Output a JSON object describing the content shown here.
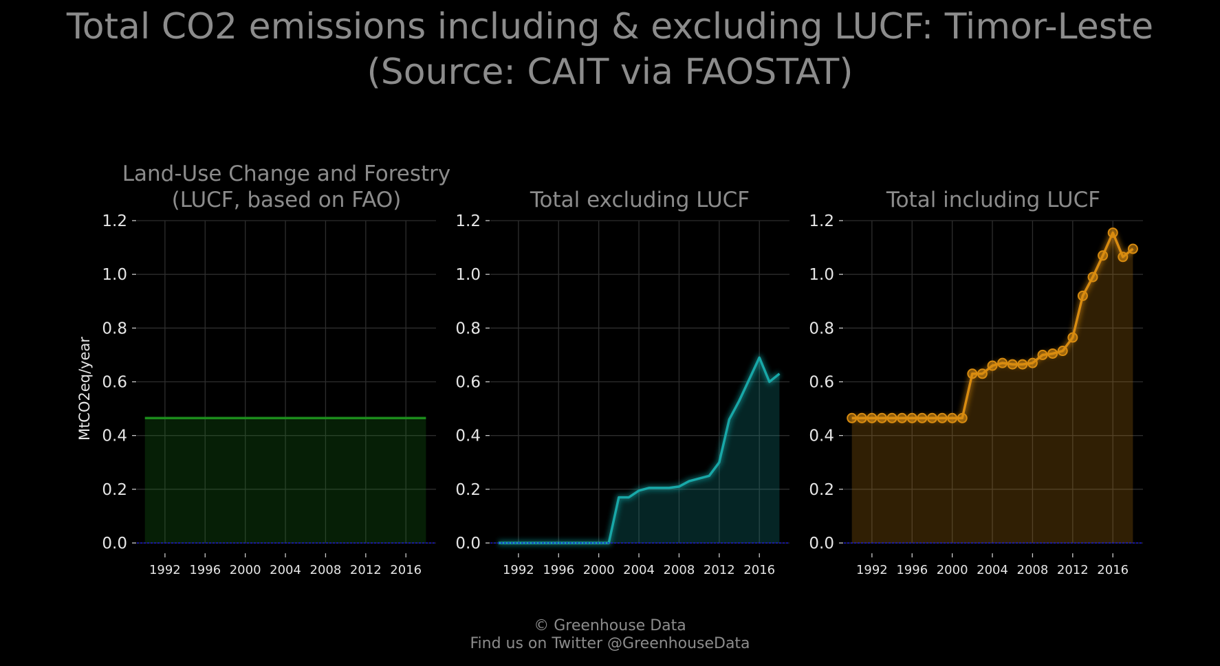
{
  "title_line1": "Total CO2 emissions including & excluding LUCF: Timor-Leste",
  "title_line2": "(Source: CAIT via FAOSTAT)",
  "footer_line1": "© Greenhouse Data",
  "footer_line2": "Find us on Twitter @GreenhouseData",
  "chart_data": [
    {
      "type": "area",
      "title": "Land-Use Change and Forestry\n(LUCF, based on FAO)",
      "ylabel": "MtCO2eq/year",
      "color": "#1c8c1c",
      "markers": false,
      "x": [
        1990,
        1991,
        1992,
        1993,
        1994,
        1995,
        1996,
        1997,
        1998,
        1999,
        2000,
        2001,
        2002,
        2003,
        2004,
        2005,
        2006,
        2007,
        2008,
        2009,
        2010,
        2011,
        2012,
        2013,
        2014,
        2015,
        2016,
        2017,
        2018
      ],
      "values": [
        0.465,
        0.465,
        0.465,
        0.465,
        0.465,
        0.465,
        0.465,
        0.465,
        0.465,
        0.465,
        0.465,
        0.465,
        0.465,
        0.465,
        0.465,
        0.465,
        0.465,
        0.465,
        0.465,
        0.465,
        0.465,
        0.465,
        0.465,
        0.465,
        0.465,
        0.465,
        0.465,
        0.465,
        0.465
      ],
      "ylim": [
        0,
        1.2
      ],
      "yticks": [
        0.0,
        0.2,
        0.4,
        0.6,
        0.8,
        1.0,
        1.2
      ],
      "ytick_labels": [
        "0.0",
        "0.2",
        "0.4",
        "0.6",
        "0.8",
        "1.0",
        "1.2"
      ],
      "xticks": [
        1992,
        1996,
        2000,
        2004,
        2008,
        2012,
        2016
      ],
      "xtick_labels": [
        "1992",
        "1996",
        "2000",
        "2004",
        "2008",
        "2012",
        "2016"
      ],
      "grid": true
    },
    {
      "type": "area",
      "title": "Total excluding LUCF",
      "ylabel": "",
      "color": "#18a8a8",
      "markers": false,
      "x": [
        1990,
        1991,
        1992,
        1993,
        1994,
        1995,
        1996,
        1997,
        1998,
        1999,
        2000,
        2001,
        2002,
        2003,
        2004,
        2005,
        2006,
        2007,
        2008,
        2009,
        2010,
        2011,
        2012,
        2013,
        2014,
        2015,
        2016,
        2017,
        2018
      ],
      "values": [
        0,
        0,
        0,
        0,
        0,
        0,
        0,
        0,
        0,
        0,
        0,
        0,
        0.17,
        0.17,
        0.195,
        0.205,
        0.205,
        0.205,
        0.21,
        0.23,
        0.24,
        0.25,
        0.3,
        0.46,
        0.53,
        0.61,
        0.69,
        0.6,
        0.63
      ],
      "ylim": [
        0,
        1.2
      ],
      "yticks": [
        0.0,
        0.2,
        0.4,
        0.6,
        0.8,
        1.0,
        1.2
      ],
      "ytick_labels": [
        "0.0",
        "0.2",
        "0.4",
        "0.6",
        "0.8",
        "1.0",
        "1.2"
      ],
      "xticks": [
        1992,
        1996,
        2000,
        2004,
        2008,
        2012,
        2016
      ],
      "xtick_labels": [
        "1992",
        "1996",
        "2000",
        "2004",
        "2008",
        "2012",
        "2016"
      ],
      "grid": true
    },
    {
      "type": "area",
      "title": "Total including LUCF",
      "ylabel": "",
      "color": "#d98c10",
      "markers": true,
      "x": [
        1990,
        1991,
        1992,
        1993,
        1994,
        1995,
        1996,
        1997,
        1998,
        1999,
        2000,
        2001,
        2002,
        2003,
        2004,
        2005,
        2006,
        2007,
        2008,
        2009,
        2010,
        2011,
        2012,
        2013,
        2014,
        2015,
        2016,
        2017,
        2018
      ],
      "values": [
        0.465,
        0.465,
        0.465,
        0.465,
        0.465,
        0.465,
        0.465,
        0.465,
        0.465,
        0.465,
        0.465,
        0.465,
        0.63,
        0.63,
        0.66,
        0.67,
        0.665,
        0.665,
        0.67,
        0.7,
        0.705,
        0.715,
        0.765,
        0.92,
        0.99,
        1.07,
        1.155,
        1.065,
        1.095
      ],
      "ylim": [
        0,
        1.2
      ],
      "yticks": [
        0.0,
        0.2,
        0.4,
        0.6,
        0.8,
        1.0,
        1.2
      ],
      "ytick_labels": [
        "0.0",
        "0.2",
        "0.4",
        "0.6",
        "0.8",
        "1.0",
        "1.2"
      ],
      "xticks": [
        1992,
        1996,
        2000,
        2004,
        2008,
        2012,
        2016
      ],
      "xtick_labels": [
        "1992",
        "1996",
        "2000",
        "2004",
        "2008",
        "2012",
        "2016"
      ],
      "grid": true
    }
  ],
  "colors": {
    "background": "#000000",
    "grid": "#2e2e2e",
    "zero_line": "#1a1ad0",
    "title_text": "#8c8c8c",
    "tick_text": "#e6e6e6"
  }
}
